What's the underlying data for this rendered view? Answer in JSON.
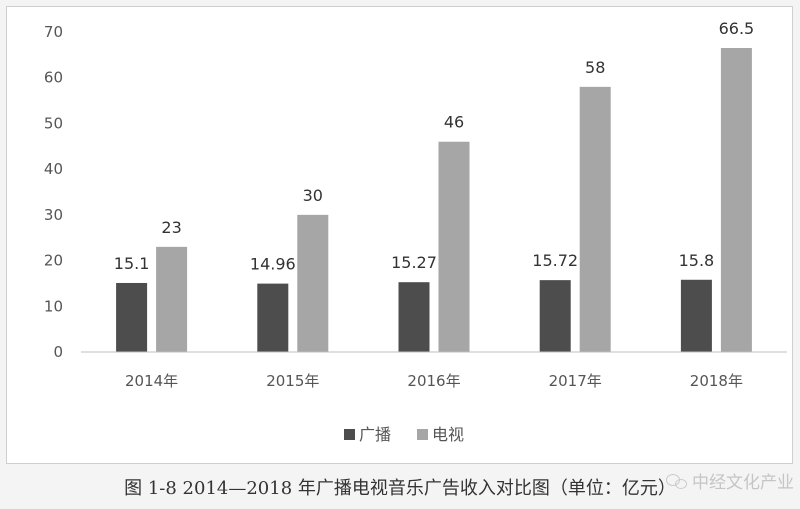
{
  "chart_data": {
    "type": "bar",
    "categories": [
      "2014年",
      "2015年",
      "2016年",
      "2017年",
      "2018年"
    ],
    "series": [
      {
        "name": "广播",
        "values": [
          15.1,
          14.96,
          15.27,
          15.72,
          15.8
        ],
        "color": "#4d4d4d"
      },
      {
        "name": "电视",
        "values": [
          23,
          30,
          46,
          58,
          66.5
        ],
        "color": "#a6a6a6"
      }
    ],
    "data_labels": [
      [
        "15.1",
        "14.96",
        "15.27",
        "15.72",
        "15.8"
      ],
      [
        "23",
        "30",
        "46",
        "58",
        "66.5"
      ]
    ],
    "ylim": [
      0,
      70
    ],
    "yticks": [
      0,
      10,
      20,
      30,
      40,
      50,
      60,
      70
    ],
    "grid": false,
    "legend_position": "bottom"
  },
  "caption": "图 1-8  2014—2018 年广播电视音乐广告收入对比图（单位：亿元）",
  "watermark": "中经文化产业"
}
